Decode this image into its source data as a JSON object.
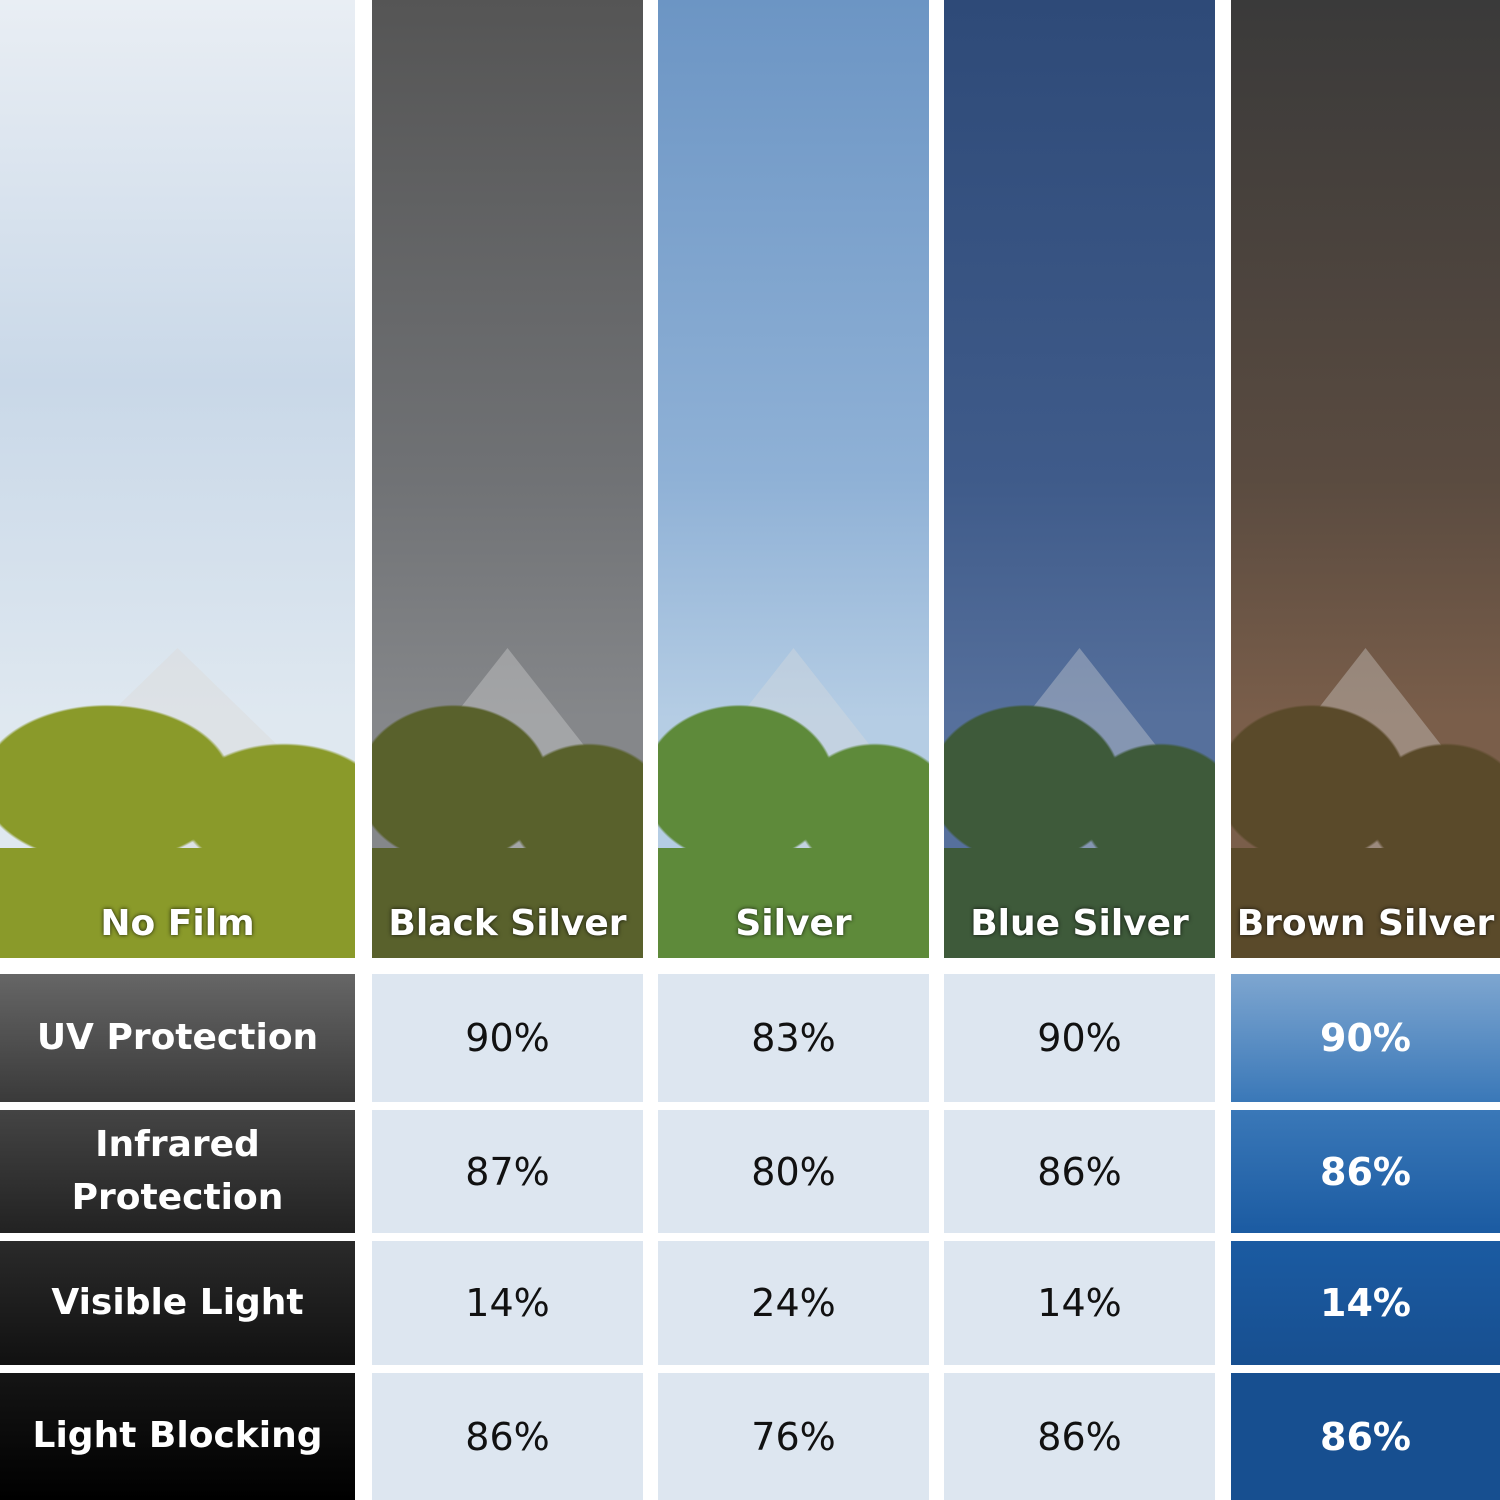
{
  "films": [
    "No Film",
    "Black Silver",
    "Silver",
    "Blue Silver",
    "Brown Silver"
  ],
  "rows": [
    {
      "label": "UV Protection",
      "values": [
        "90%",
        "83%",
        "90%",
        "90%"
      ]
    },
    {
      "label": "Infrared Protection",
      "values": [
        "87%",
        "80%",
        "86%",
        "86%"
      ]
    },
    {
      "label": "Visible Light",
      "values": [
        "14%",
        "24%",
        "14%",
        "14%"
      ]
    },
    {
      "label": "Light Blocking",
      "values": [
        "86%",
        "76%",
        "86%",
        "86%"
      ]
    }
  ],
  "colors": {
    "cell_bg": "#dde6f0",
    "highlight_column": [
      "#7ea6d0",
      "#3a78b8",
      "#1b5ba2",
      "#174f90"
    ]
  }
}
